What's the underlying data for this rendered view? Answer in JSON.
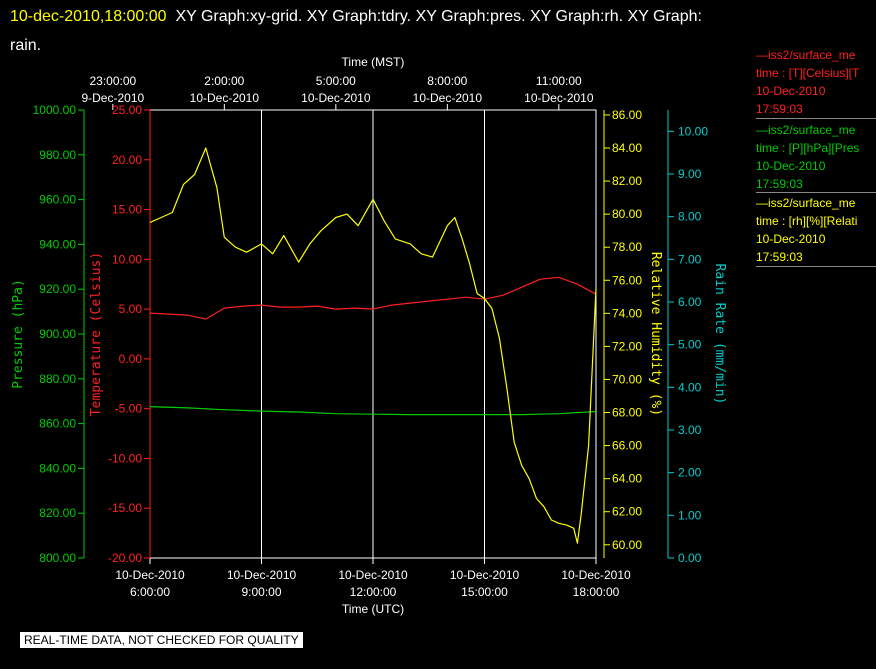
{
  "header": {
    "timestamp": "10-dec-2010,18:00:00",
    "titles_line1": "XY Graph:xy-grid.  XY Graph:tdry.  XY Graph:pres.  XY Graph:rh.  XY Graph:",
    "titles_line2": "rain."
  },
  "legend": [
    {
      "name": "—iss2/surface_me",
      "units": "time : [T][Celsius][T",
      "date": "10-Dec-2010",
      "time": "17:59:03",
      "color": "#ff2020"
    },
    {
      "name": "—iss2/surface_me",
      "units": "time : [P][hPa][Pres",
      "date": "10-Dec-2010",
      "time": "17:59:03",
      "color": "#00cc00"
    },
    {
      "name": "—iss2/surface_me",
      "units": "time : [rh][%][Relati",
      "date": "10-Dec-2010",
      "time": "17:59:03",
      "color": "#ffff00"
    }
  ],
  "footer": "REAL-TIME DATA, NOT CHECKED FOR QUALITY",
  "chart_data": {
    "type": "line",
    "top_axis": {
      "label": "Time (MST)",
      "ticks": [
        {
          "h": 5,
          "l1": "23:00:00",
          "l2": "9-Dec-2010"
        },
        {
          "h": 8,
          "l1": "2:00:00",
          "l2": "10-Dec-2010"
        },
        {
          "h": 11,
          "l1": "5:00:00",
          "l2": "10-Dec-2010"
        },
        {
          "h": 14,
          "l1": "8:00:00",
          "l2": "10-Dec-2010"
        },
        {
          "h": 17,
          "l1": "11:00:00",
          "l2": "10-Dec-2010"
        }
      ]
    },
    "bottom_axis": {
      "label": "Time (UTC)",
      "xlim": [
        6,
        18
      ],
      "ticks": [
        {
          "h": 6,
          "l1": "10-Dec-2010",
          "l2": "6:00:00"
        },
        {
          "h": 9,
          "l1": "10-Dec-2010",
          "l2": "9:00:00"
        },
        {
          "h": 12,
          "l1": "10-Dec-2010",
          "l2": "12:00:00"
        },
        {
          "h": 15,
          "l1": "10-Dec-2010",
          "l2": "15:00:00"
        },
        {
          "h": 18,
          "l1": "10-Dec-2010",
          "l2": "18:00:00"
        }
      ]
    },
    "axes": [
      {
        "id": "pres",
        "label": "Pressure (hPa)",
        "color": "#00cc00",
        "ylim": [
          800,
          1000
        ],
        "ticks": [
          "800.00",
          "820.00",
          "840.00",
          "860.00",
          "880.00",
          "900.00",
          "920.00",
          "940.00",
          "960.00",
          "980.00",
          "1000.00"
        ]
      },
      {
        "id": "temp",
        "label": "Temperature (Celsius)",
        "color": "#ff2020",
        "ylim": [
          -20,
          25
        ],
        "ticks": [
          "-20.00",
          "-15.00",
          "-10.00",
          "-5.00",
          "0.00",
          "5.00",
          "10.00",
          "15.00",
          "20.00",
          "25.00"
        ]
      },
      {
        "id": "rh",
        "label": "Relative Humidity (%)",
        "color": "#ffff00",
        "ylim": [
          59.2,
          86.3
        ],
        "ticks": [
          "60.00",
          "62.00",
          "64.00",
          "66.00",
          "68.00",
          "70.00",
          "72.00",
          "74.00",
          "76.00",
          "78.00",
          "80.00",
          "82.00",
          "84.00",
          "86.00"
        ]
      },
      {
        "id": "rain",
        "label": "Rain Rate (mm/min)",
        "color": "#00cccc",
        "ylim": [
          0,
          10.5
        ],
        "ticks": [
          "0.00",
          "1.00",
          "2.00",
          "3.00",
          "4.00",
          "5.00",
          "6.00",
          "7.00",
          "8.00",
          "9.00",
          "10.00"
        ]
      }
    ],
    "series": [
      {
        "axis": "temp",
        "color": "#ff2020",
        "x": [
          6.0,
          6.5,
          7.0,
          7.5,
          8.0,
          8.5,
          9.0,
          9.5,
          10.0,
          10.5,
          11.0,
          11.5,
          12.0,
          12.5,
          13.0,
          13.5,
          14.0,
          14.5,
          15.0,
          15.5,
          16.0,
          16.5,
          17.0,
          17.5,
          18.0
        ],
        "y": [
          4.6,
          4.5,
          4.4,
          4.0,
          5.1,
          5.3,
          5.4,
          5.2,
          5.2,
          5.3,
          5.0,
          5.1,
          5.0,
          5.4,
          5.6,
          5.8,
          6.0,
          6.2,
          6.0,
          6.4,
          7.2,
          8.0,
          8.2,
          7.5,
          6.5
        ]
      },
      {
        "axis": "pres",
        "color": "#00cc00",
        "x": [
          6.0,
          7.0,
          8.0,
          9.0,
          10.0,
          11.0,
          12.0,
          13.0,
          14.0,
          15.0,
          16.0,
          17.0,
          18.0
        ],
        "y": [
          867.6,
          867.0,
          866.2,
          865.6,
          865.2,
          864.4,
          864.2,
          864.0,
          864.0,
          864.0,
          864.0,
          864.4,
          865.4
        ]
      },
      {
        "axis": "rh",
        "color": "#ffff00",
        "x": [
          6.0,
          6.3,
          6.6,
          6.9,
          7.2,
          7.5,
          7.8,
          8.0,
          8.3,
          8.6,
          9.0,
          9.3,
          9.6,
          10.0,
          10.3,
          10.6,
          11.0,
          11.3,
          11.6,
          12.0,
          12.3,
          12.6,
          13.0,
          13.3,
          13.6,
          14.0,
          14.2,
          14.4,
          14.6,
          14.8,
          15.0,
          15.2,
          15.4,
          15.6,
          15.8,
          16.0,
          16.2,
          16.4,
          16.6,
          16.8,
          17.0,
          17.2,
          17.4,
          17.5,
          17.6,
          17.8,
          18.0
        ],
        "y": [
          79.5,
          79.8,
          80.1,
          81.8,
          82.4,
          84.0,
          81.6,
          78.6,
          78.0,
          77.7,
          78.2,
          77.6,
          78.7,
          77.1,
          78.2,
          79.0,
          79.8,
          80.0,
          79.3,
          80.9,
          79.6,
          78.5,
          78.2,
          77.6,
          77.4,
          79.3,
          79.8,
          78.5,
          77.0,
          75.2,
          74.9,
          74.3,
          72.5,
          69.5,
          66.2,
          64.8,
          64.0,
          62.8,
          62.3,
          61.5,
          61.3,
          61.2,
          61.0,
          60.1,
          61.8,
          66.0,
          75.5
        ]
      }
    ]
  }
}
